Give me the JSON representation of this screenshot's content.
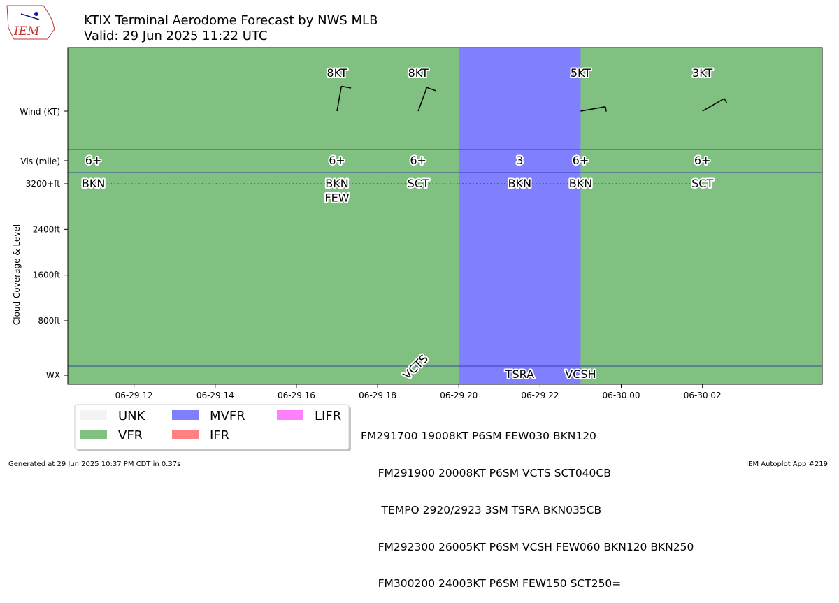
{
  "logo": {
    "text": "IEM"
  },
  "chart_data": {
    "type": "timeline",
    "title": "KTIX Terminal Aerodome Forecast by NWS MLB",
    "subtitle": "Valid: 29 Jun 2025 11:22 UTC",
    "ylabel": "Cloud Coverage & Level",
    "row_labels": {
      "wind": "Wind (KT)",
      "vis": "Vis (mile)",
      "wx": "WX"
    },
    "cloud_ticks": [
      {
        "label": "3200+ft",
        "value": 3200
      },
      {
        "label": "2400ft",
        "value": 2400
      },
      {
        "label": "1600ft",
        "value": 1600
      },
      {
        "label": "800ft",
        "value": 800
      }
    ],
    "x_ticks": [
      {
        "label": "06-29 12",
        "hour": 12
      },
      {
        "label": "06-29 14",
        "hour": 14
      },
      {
        "label": "06-29 16",
        "hour": 16
      },
      {
        "label": "06-29 18",
        "hour": 18
      },
      {
        "label": "06-29 20",
        "hour": 20
      },
      {
        "label": "06-29 22",
        "hour": 22
      },
      {
        "label": "06-30 00",
        "hour": 24
      },
      {
        "label": "06-30 02",
        "hour": 26
      }
    ],
    "x_range_hours": [
      10.37,
      28.95
    ],
    "category_colors": {
      "UNK": "#f4f4f4",
      "VFR": "#80c080",
      "MVFR": "#8080ff",
      "IFR": "#ff8080",
      "LIFR": "#ff80ff"
    },
    "segments": [
      {
        "start": 10.37,
        "end": 20.0,
        "category": "VFR"
      },
      {
        "start": 20.0,
        "end": 23.0,
        "category": "MVFR"
      },
      {
        "start": 23.0,
        "end": 28.95,
        "category": "VFR"
      }
    ],
    "wind": [
      {
        "hour": 17.0,
        "label": "8KT",
        "dir": 190,
        "speed": 8
      },
      {
        "hour": 19.0,
        "label": "8KT",
        "dir": 200,
        "speed": 8
      },
      {
        "hour": 23.0,
        "label": "5KT",
        "dir": 260,
        "speed": 5
      },
      {
        "hour": 26.0,
        "label": "3KT",
        "dir": 240,
        "speed": 3
      }
    ],
    "visibility": [
      {
        "hour": 11.0,
        "label": "6+"
      },
      {
        "hour": 17.0,
        "label": "6+"
      },
      {
        "hour": 19.0,
        "label": "6+"
      },
      {
        "hour": 21.5,
        "label": "3"
      },
      {
        "hour": 23.0,
        "label": "6+"
      },
      {
        "hour": 26.0,
        "label": "6+"
      }
    ],
    "clouds": [
      {
        "hour": 11.0,
        "label": "BKN",
        "level": 3200
      },
      {
        "hour": 17.0,
        "label": "BKN",
        "level": 3200
      },
      {
        "hour": 17.0,
        "label": "FEW",
        "level": 2950
      },
      {
        "hour": 19.0,
        "label": "SCT",
        "level": 3200
      },
      {
        "hour": 21.5,
        "label": "BKN",
        "level": 3200
      },
      {
        "hour": 23.0,
        "label": "BKN",
        "level": 3200
      },
      {
        "hour": 26.0,
        "label": "SCT",
        "level": 3200
      }
    ],
    "weather": [
      {
        "hour": 19.0,
        "label": "VCTS",
        "rotated": true
      },
      {
        "hour": 21.5,
        "label": "TSRA",
        "rotated": false
      },
      {
        "hour": 23.0,
        "label": "VCSH",
        "rotated": false
      }
    ],
    "legend": [
      {
        "label": "UNK",
        "color": "#f4f4f4"
      },
      {
        "label": "VFR",
        "color": "#80c080"
      },
      {
        "label": "MVFR",
        "color": "#8080ff"
      },
      {
        "label": "IFR",
        "color": "#ff8080"
      },
      {
        "label": "LIFR",
        "color": "#ff80ff"
      }
    ]
  },
  "taf_text": [
    "FM291700 19008KT P6SM FEW030 BKN120",
    "     FM291900 20008KT P6SM VCTS SCT040CB",
    "      TEMPO 2920/2923 3SM TSRA BKN035CB",
    "     FM292300 26005KT P6SM VCSH FEW060 BKN120 BKN250",
    "     FM300200 24003KT P6SM FEW150 SCT250="
  ],
  "footer": {
    "generated": "Generated at 29 Jun 2025 10:37 PM CDT in 0.37s",
    "app": "IEM Autoplot App #219"
  }
}
